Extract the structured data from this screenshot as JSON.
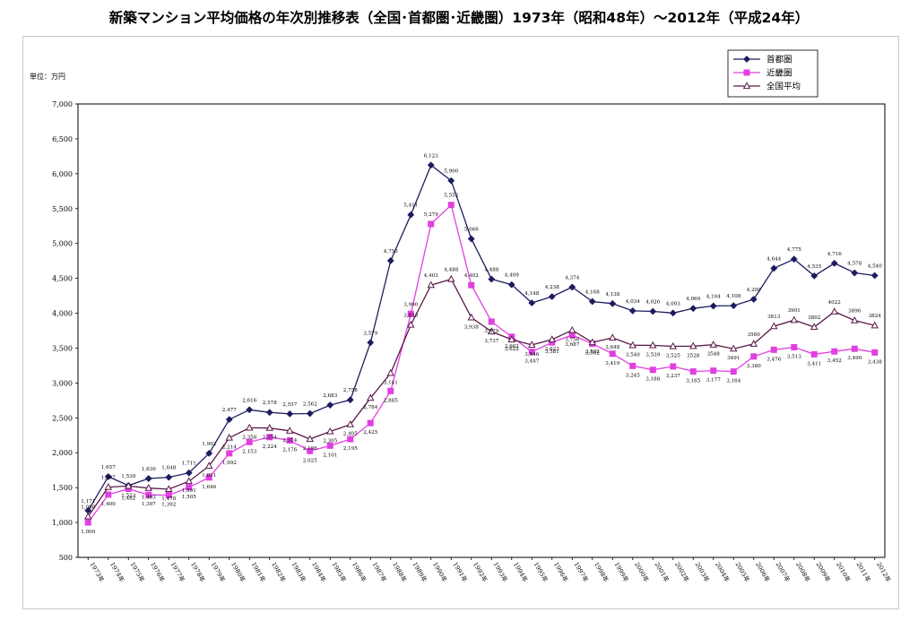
{
  "title": "新築マンション平均価格の年次別推移表（全国･首都圏･近畿圏）1973年（昭和48年）～2012年（平成24年）",
  "unit_label": "単位：万円",
  "colors": {
    "shutoken": "#1c1c5e",
    "kinki": "#e040e0",
    "zenkoku": "#5a1a4a"
  },
  "chart_data": {
    "type": "line",
    "title": "新築マンション平均価格の年次別推移表（全国･首都圏･近畿圏）1973年（昭和48年）～2012年（平成24年）",
    "ylabel": "単位：万円",
    "ylim": [
      500,
      7000
    ],
    "yticks": [
      "500",
      "1,000",
      "1,500",
      "2,000",
      "2,500",
      "3,000",
      "3,500",
      "4,000",
      "4,500",
      "5,000",
      "5,500",
      "6,000",
      "6,500",
      "7,000"
    ],
    "grid": false,
    "legend": "top-right",
    "categories": [
      "1973年",
      "1974年",
      "1975年",
      "1976年",
      "1977年",
      "1978年",
      "1979年",
      "1980年",
      "1981年",
      "1982年",
      "1983年",
      "1984年",
      "1985年",
      "1986年",
      "1987年",
      "1988年",
      "1989年",
      "1990年",
      "1991年",
      "1992年",
      "1993年",
      "1994年",
      "1995年",
      "1996年",
      "1997年",
      "1998年",
      "1999年",
      "2000年",
      "2001年",
      "2002年",
      "2003年",
      "2004年",
      "2005年",
      "2006年",
      "2007年",
      "2008年",
      "2009年",
      "2010年",
      "2011年",
      "2012年"
    ],
    "series": [
      {
        "name": "首都圏",
        "marker": "diamond",
        "values": [
          1171,
          1657,
          1530,
          1630,
          1648,
          1711,
          1992,
          2477,
          2616,
          2578,
          2557,
          2562,
          2683,
          2758,
          3579,
          4753,
          5411,
          6123,
          5900,
          5066,
          4488,
          4409,
          4148,
          4238,
          4374,
          4168,
          4138,
          4034,
          4026,
          4003,
          4069,
          4104,
          4108,
          4200,
          4644,
          4775,
          4535,
          4716,
          4578,
          4540
        ],
        "labels": [
          "1,171",
          "1,657",
          "1,530",
          "1,630",
          "1,648",
          "1,711",
          "1,992",
          "2,477",
          "2,616",
          "2,578",
          "2,557",
          "2,562",
          "2,683",
          "2,758",
          "3,579",
          "4,753",
          "5,411",
          "6,123",
          "5,900",
          "5,066",
          "4,488",
          "4,409",
          "4,148",
          "4,238",
          "4,374",
          "4,168",
          "4,138",
          "4,034",
          "4,026",
          "4,003",
          "4,069",
          "4,104",
          "4,108",
          "4,200",
          "4,644",
          "4,775",
          "4,535",
          "4,716",
          "4,578",
          "4,540"
        ]
      },
      {
        "name": "近畿圏",
        "marker": "square",
        "values": [
          1000,
          1400,
          1482,
          1397,
          1392,
          1505,
          1646,
          1992,
          2153,
          2224,
          2176,
          2025,
          2101,
          2195,
          2425,
          2885,
          3990,
          5279,
          5552,
          4402,
          3879,
          3662,
          3447,
          3581,
          3687,
          3562,
          3419,
          3245,
          3188,
          3237,
          3165,
          3177,
          3164,
          3380,
          3476,
          3513,
          3411,
          3452,
          3490,
          3438
        ],
        "labels": [
          "1,000",
          "1,400",
          "1,482",
          "1,397",
          "1,392",
          "1,505",
          "1,646",
          "1,992",
          "2,153",
          "2,224",
          "2,176",
          "2,025",
          "2,101",
          "2,195",
          "2,425",
          "2,885",
          "3,990",
          "5,279",
          "5,552",
          "4,402",
          "3,879",
          "3,662",
          "3,447",
          "3,581",
          "3,687",
          "3,562",
          "3,419",
          "3,245",
          "3,188",
          "3,237",
          "3,165",
          "3,177",
          "3,164",
          "3,380",
          "3,476",
          "3,513",
          "3,411",
          "3,452",
          "3,490",
          "3,438"
        ]
      },
      {
        "name": "全国平均",
        "marker": "triangle",
        "values": [
          1086,
          1507,
          1523,
          1493,
          1478,
          1591,
          1811,
          2214,
          2358,
          2354,
          2314,
          2196,
          2305,
          2405,
          2784,
          3141,
          3833,
          4403,
          4488,
          3938,
          3737,
          3622,
          3546,
          3623,
          3756,
          3582,
          3648,
          3540,
          3539,
          3525,
          3528,
          3548,
          3491,
          3560,
          3813,
          3901,
          3802,
          4022,
          3896,
          3824
        ],
        "labels": [
          "1,086",
          "1,507",
          "1,523",
          "1,493",
          "1,478",
          "1,591",
          "1,811",
          "2,214",
          "2,358",
          "2,354",
          "2,314",
          "2,196",
          "2,305",
          "2,405",
          "2,784",
          "3,141",
          "3,833",
          "4,403",
          "4,488",
          "3,938",
          "3,737",
          "3,622",
          "3,546",
          "3,623",
          "3,756",
          "3,582",
          "3,648",
          "3,540",
          "3,539",
          "3,525",
          "3528",
          "3548",
          "3491",
          "3560",
          "3813",
          "3901",
          "3802",
          "4022",
          "3896",
          "3824"
        ]
      }
    ]
  }
}
